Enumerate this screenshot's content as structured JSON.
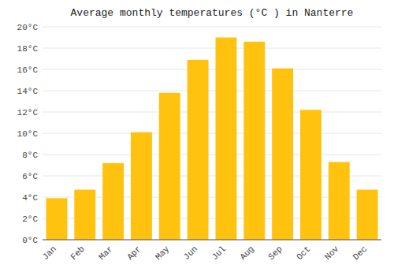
{
  "chart_data": {
    "type": "bar",
    "title": "Average monthly temperatures (°C ) in Nanterre",
    "categories": [
      "Jan",
      "Feb",
      "Mar",
      "Apr",
      "May",
      "Jun",
      "Jul",
      "Aug",
      "Sep",
      "Oct",
      "Nov",
      "Dec"
    ],
    "values": [
      3.9,
      4.7,
      7.2,
      10.1,
      13.8,
      16.9,
      19.0,
      18.6,
      16.1,
      12.2,
      7.3,
      4.7
    ],
    "color": "#FFC20E",
    "ylim": [
      0,
      20
    ],
    "yticks": [
      {
        "value": 0,
        "label": "0°C"
      },
      {
        "value": 2,
        "label": "2°C"
      },
      {
        "value": 4,
        "label": "4°C"
      },
      {
        "value": 6,
        "label": "6°C"
      },
      {
        "value": 8,
        "label": "8°C"
      },
      {
        "value": 10,
        "label": "10°C"
      },
      {
        "value": 12,
        "label": "12°C"
      },
      {
        "value": 14,
        "label": "14°C"
      },
      {
        "value": 16,
        "label": "16°C"
      },
      {
        "value": 18,
        "label": "18°C"
      },
      {
        "value": 20,
        "label": "20°C"
      }
    ],
    "grid": true
  }
}
